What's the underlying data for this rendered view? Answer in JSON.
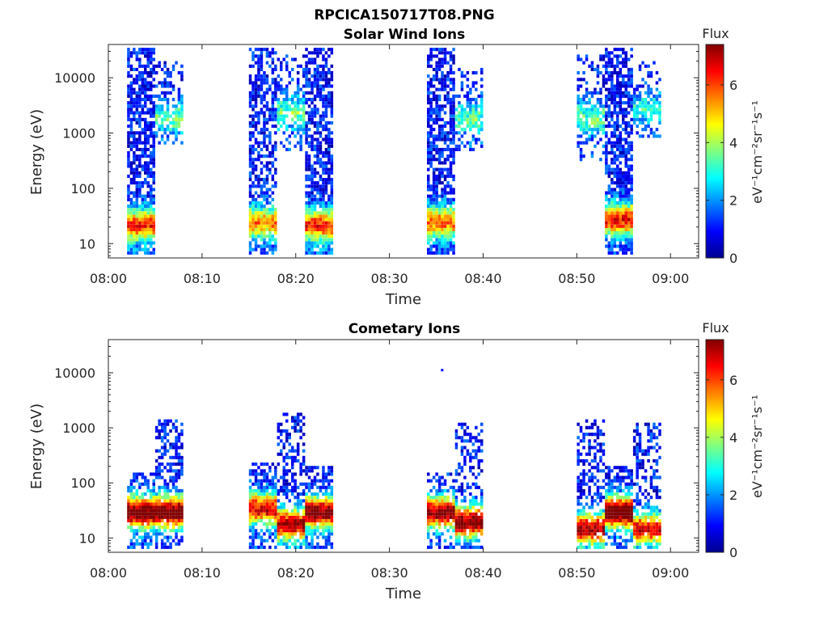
{
  "figure_title": "RPCICA150717T08.PNG",
  "colormap": [
    "#00008f",
    "#0000ff",
    "#0080ff",
    "#00ffff",
    "#80ff80",
    "#ffff00",
    "#ff8000",
    "#ff0000",
    "#800000"
  ],
  "chart_data": [
    {
      "type": "heatmap",
      "title": "Solar Wind Ions",
      "xlabel": "Time",
      "ylabel": "Energy (eV)",
      "yscale": "log",
      "ylim": [
        5.5,
        40000
      ],
      "xlim": [
        "08:00",
        "09:03"
      ],
      "xticks": [
        "08:00",
        "08:10",
        "08:20",
        "08:30",
        "08:40",
        "08:50",
        "09:00"
      ],
      "yticks": [
        "10",
        "100",
        "1000",
        "10000"
      ],
      "colorbar": {
        "label": "Flux",
        "unit": "eV⁻¹cm⁻²sr⁻¹s⁻¹",
        "ticks": [
          "0",
          "2",
          "4",
          "6"
        ],
        "range": [
          0,
          7.4
        ]
      },
      "bursts": [
        {
          "start": "08:02",
          "end": "08:05",
          "emin": 6,
          "emax": 35000,
          "peak_e": 22,
          "peak_flux": 5.0,
          "fill": 0.7
        },
        {
          "start": "08:05",
          "end": "08:08",
          "emin": 600,
          "emax": 20000,
          "peak_e": 2000,
          "peak_flux": 2.4,
          "fill": 0.3
        },
        {
          "start": "08:15",
          "end": "08:18",
          "emin": 6,
          "emax": 35000,
          "peak_e": 25,
          "peak_flux": 4.2,
          "fill": 0.6
        },
        {
          "start": "08:18",
          "end": "08:21",
          "emin": 500,
          "emax": 25000,
          "peak_e": 2500,
          "peak_flux": 2.3,
          "fill": 0.35
        },
        {
          "start": "08:21",
          "end": "08:24",
          "emin": 6,
          "emax": 35000,
          "peak_e": 22,
          "peak_flux": 5.0,
          "fill": 0.7
        },
        {
          "start": "08:34",
          "end": "08:37",
          "emin": 6,
          "emax": 35000,
          "peak_e": 25,
          "peak_flux": 4.5,
          "fill": 0.7
        },
        {
          "start": "08:37",
          "end": "08:40",
          "emin": 500,
          "emax": 15000,
          "peak_e": 2000,
          "peak_flux": 2.2,
          "fill": 0.3
        },
        {
          "start": "08:50",
          "end": "08:53",
          "emin": 300,
          "emax": 25000,
          "peak_e": 2000,
          "peak_flux": 2.3,
          "fill": 0.3
        },
        {
          "start": "08:53",
          "end": "08:56",
          "emin": 6,
          "emax": 35000,
          "peak_e": 28,
          "peak_flux": 5.2,
          "fill": 0.7
        },
        {
          "start": "08:56",
          "end": "08:59",
          "emin": 800,
          "emax": 20000,
          "peak_e": 3000,
          "peak_flux": 1.8,
          "fill": 0.3
        }
      ]
    },
    {
      "type": "heatmap",
      "title": "Cometary Ions",
      "xlabel": "Time",
      "ylabel": "Energy (eV)",
      "yscale": "log",
      "ylim": [
        5.5,
        40000
      ],
      "xlim": [
        "08:00",
        "09:03"
      ],
      "xticks": [
        "08:00",
        "08:10",
        "08:20",
        "08:30",
        "08:40",
        "08:50",
        "09:00"
      ],
      "yticks": [
        "10",
        "100",
        "1000",
        "10000"
      ],
      "colorbar": {
        "label": "Flux",
        "unit": "eV⁻¹cm⁻²sr⁻¹s⁻¹",
        "ticks": [
          "0",
          "2",
          "4",
          "6"
        ],
        "range": [
          0,
          7.4
        ]
      },
      "bursts": [
        {
          "start": "08:02",
          "end": "08:05",
          "emin": 6,
          "emax": 150,
          "peak_e": 30,
          "peak_flux": 6.8,
          "fill": 0.6
        },
        {
          "start": "08:05",
          "end": "08:08",
          "emin": 6,
          "emax": 1400,
          "peak_e": 30,
          "peak_flux": 6.8,
          "fill": 0.5
        },
        {
          "start": "08:15",
          "end": "08:18",
          "emin": 6,
          "emax": 220,
          "peak_e": 35,
          "peak_flux": 5.5,
          "fill": 0.6
        },
        {
          "start": "08:18",
          "end": "08:21",
          "emin": 6,
          "emax": 1800,
          "peak_e": 18,
          "peak_flux": 6.0,
          "fill": 0.5
        },
        {
          "start": "08:21",
          "end": "08:24",
          "emin": 6,
          "emax": 200,
          "peak_e": 30,
          "peak_flux": 6.5,
          "fill": 0.6
        },
        {
          "start": "08:34",
          "end": "08:37",
          "emin": 6,
          "emax": 150,
          "peak_e": 30,
          "peak_flux": 6.2,
          "fill": 0.5
        },
        {
          "start": "08:37",
          "end": "08:40",
          "emin": 6,
          "emax": 1200,
          "peak_e": 20,
          "peak_flux": 6.5,
          "fill": 0.45
        },
        {
          "start": "08:50",
          "end": "08:53",
          "emin": 6,
          "emax": 1500,
          "peak_e": 15,
          "peak_flux": 6.0,
          "fill": 0.45
        },
        {
          "start": "08:53",
          "end": "08:56",
          "emin": 6,
          "emax": 200,
          "peak_e": 30,
          "peak_flux": 7.0,
          "fill": 0.6
        },
        {
          "start": "08:56",
          "end": "08:59",
          "emin": 6,
          "emax": 1200,
          "peak_e": 15,
          "peak_flux": 5.5,
          "fill": 0.45
        }
      ],
      "isolated_points": [
        {
          "time": "08:35.5",
          "energy": 11000,
          "flux": 1.0
        }
      ]
    }
  ]
}
